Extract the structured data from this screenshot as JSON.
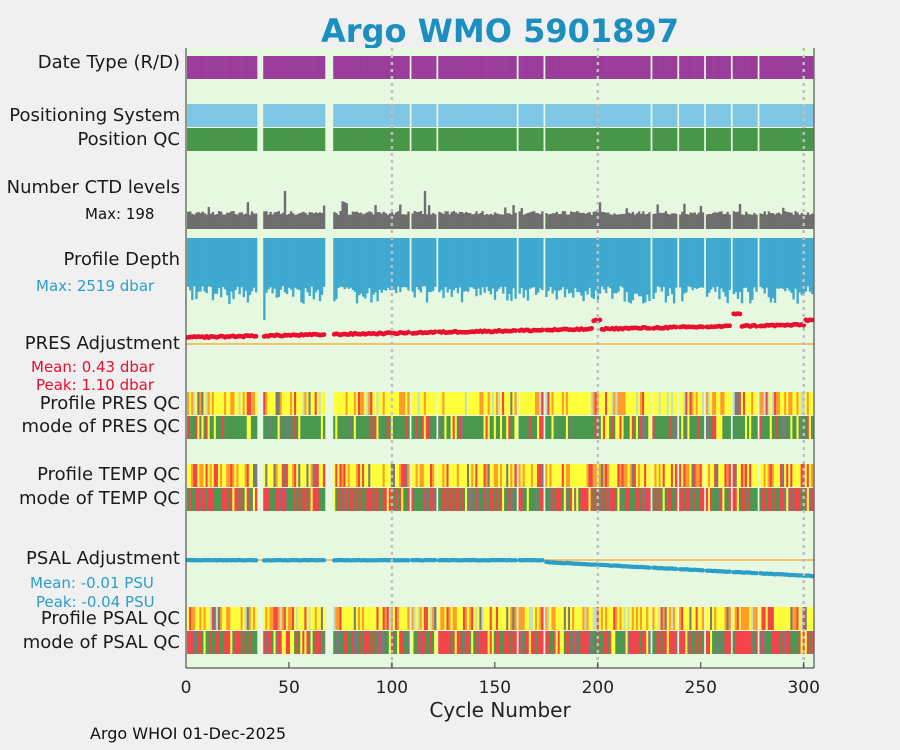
{
  "chart_data": {
    "type": "timeline-strips",
    "title": "Argo WMO 5901897",
    "xlabel": "Cycle Number",
    "xlim": [
      0,
      305
    ],
    "xticks": [
      0,
      50,
      100,
      150,
      200,
      250,
      300
    ],
    "rows": {
      "date_type": "Date Type (R/D)",
      "positioning": "Positioning System",
      "position_qc": "Position QC",
      "ctd_levels": "Number CTD levels",
      "profile_depth": "Profile Depth",
      "pres_adj": "PRES Adjustment",
      "profile_pres_qc": "Profile PRES QC",
      "mode_pres_qc": "mode of PRES QC",
      "profile_temp_qc": "Profile TEMP QC",
      "mode_temp_qc": "mode of TEMP QC",
      "psal_adj": "PSAL Adjustment",
      "profile_psal_qc": "Profile PSAL QC",
      "mode_psal_qc": "mode of PSAL QC"
    },
    "stats": {
      "ctd_max": "Max: 198",
      "depth_max": "Max: 2519 dbar",
      "pres_mean": "Mean: 0.43 dbar",
      "pres_peak": "Peak: 1.10 dbar",
      "psal_mean": "Mean: -0.01 PSU",
      "psal_peak": "Peak: -0.04 PSU"
    },
    "max_ctd_levels": 198,
    "max_profile_depth_dbar": 2519,
    "pres_adjustment_dbar": {
      "mean": 0.43,
      "peak": 1.1
    },
    "psal_adjustment_psu": {
      "mean": -0.01,
      "peak": -0.04
    },
    "missing_cycles": [
      [
        35,
        37
      ],
      [
        68,
        71
      ]
    ],
    "reference_lines": [
      100,
      200,
      300
    ],
    "colors": {
      "background": "#e6f8e0",
      "date_type": "#9a3d9a",
      "positioning": "#7ec6e3",
      "position_qc": "#48964a",
      "ctd": "#6e6e6e",
      "depth": "#3fa9d0",
      "pres": "#e8102f",
      "psal": "#2b9fc9",
      "zero_line": "#f4b042",
      "qc_good": "#4a9850",
      "qc_yellow": "#ffff3a",
      "qc_orange": "#ff9c2a",
      "qc_red": "#f2444a",
      "qc_gray": "#7a7a7a",
      "qc_pale": "#c6dfc0",
      "ref_line": "#bfbfbf",
      "title": "#1a8fc0"
    }
  },
  "footer": "Argo WHOI 01-Dec-2025"
}
